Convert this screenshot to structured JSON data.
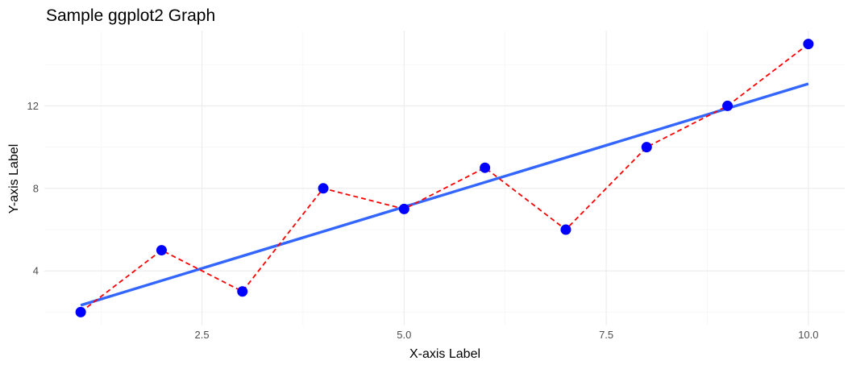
{
  "chart_data": {
    "type": "scatter",
    "title": "Sample ggplot2 Graph",
    "xlabel": "X-axis Label",
    "ylabel": "Y-axis Label",
    "xlim": [
      0.55,
      10.45
    ],
    "ylim": [
      1.35,
      15.65
    ],
    "x_ticks": [
      2.5,
      5.0,
      7.5,
      10.0
    ],
    "x_tick_labels": [
      "2.5",
      "5.0",
      "7.5",
      "10.0"
    ],
    "y_ticks": [
      4,
      8,
      12
    ],
    "y_tick_labels": [
      "4",
      "8",
      "12"
    ],
    "grid": true,
    "legend": "none",
    "points": {
      "x": [
        1,
        2,
        3,
        4,
        5,
        6,
        7,
        8,
        9,
        10
      ],
      "y": [
        2,
        5,
        3,
        8,
        7,
        9,
        6,
        10,
        12,
        15
      ],
      "color": "#0000ff"
    },
    "connecting_line": {
      "style": "dashed",
      "color": "#ff0000"
    },
    "trend_line": {
      "method": "lm",
      "color": "#3366ff",
      "x": [
        1,
        10
      ],
      "y": [
        2.33,
        13.07
      ]
    }
  }
}
